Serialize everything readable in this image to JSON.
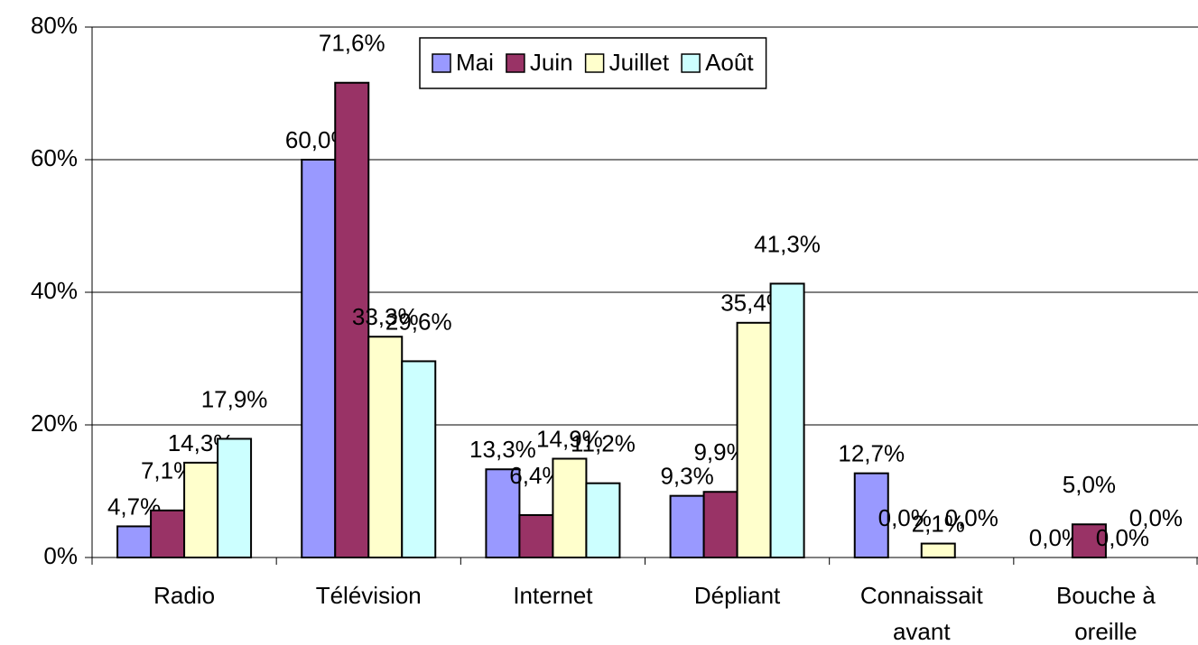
{
  "chart_data": {
    "type": "bar",
    "categories": [
      [
        "Radio"
      ],
      [
        "Télévision"
      ],
      [
        "Internet"
      ],
      [
        "Dépliant"
      ],
      [
        "Connaissait",
        "avant"
      ],
      [
        "Bouche à",
        "oreille"
      ]
    ],
    "series": [
      {
        "name": "Mai",
        "color": "#9999ff",
        "values": [
          4.7,
          60.0,
          13.3,
          9.3,
          12.7,
          0.0
        ],
        "value_labels": [
          "4,7%",
          "60,0%",
          "13,3%",
          "9,3%",
          "12,7%",
          "0,0%"
        ]
      },
      {
        "name": "Juin",
        "color": "#993366",
        "values": [
          7.1,
          71.6,
          6.4,
          9.9,
          0.0,
          5.0
        ],
        "value_labels": [
          "7,1%",
          "71,6%",
          "6,4%",
          "9,9%",
          "0,0%",
          "5,0%"
        ]
      },
      {
        "name": "Juillet",
        "color": "#ffffcc",
        "values": [
          14.3,
          33.3,
          14.9,
          35.4,
          2.1,
          0.0
        ],
        "value_labels": [
          "14,3%",
          "33,3%",
          "14,9%",
          "35,4%",
          "2,1%",
          "0,0%"
        ]
      },
      {
        "name": "Août",
        "color": "#ccffff",
        "values": [
          17.9,
          29.6,
          11.2,
          41.3,
          0.0,
          0.0
        ],
        "value_labels": [
          "17,9%",
          "29,6%",
          "11,2%",
          "41,3%",
          "0,0%",
          "0,0%"
        ]
      }
    ],
    "ylim": [
      0,
      80
    ],
    "yticks": [
      {
        "value": 0,
        "label": "0%"
      },
      {
        "value": 20,
        "label": "20%"
      },
      {
        "value": 40,
        "label": "40%"
      },
      {
        "value": 60,
        "label": "60%"
      },
      {
        "value": 80,
        "label": "80%"
      }
    ],
    "grid": true,
    "legend": "top"
  }
}
